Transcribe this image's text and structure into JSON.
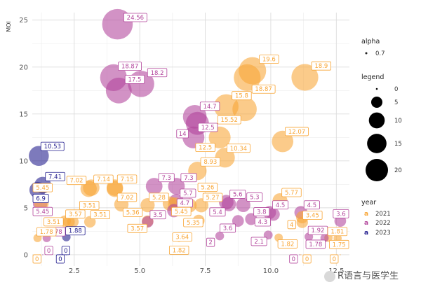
{
  "chart_data": {
    "type": "scatter",
    "variant": "bubble",
    "ylabel": "MOI",
    "xlabel": "",
    "xlim": [
      0.9,
      13.0
    ],
    "ylim": [
      -1.2,
      25.8
    ],
    "xticks": [
      2.5,
      5.0,
      7.5,
      10.0,
      12.5
    ],
    "xtick_labels": [
      "2.5",
      "5.0",
      "7.5",
      "10.0",
      "12.5"
    ],
    "yticks": [
      0,
      5,
      10,
      15,
      20,
      25
    ],
    "ytick_labels": [
      "0",
      "5",
      "10",
      "15",
      "20",
      "25"
    ],
    "colors": {
      "2021": "#f8a535",
      "2022": "#b2449b",
      "2023": "#1f1a8c"
    },
    "legend": {
      "alpha_title": "alpha",
      "alpha_value": "0.7",
      "size_title": "legend",
      "size_values": [
        0,
        5,
        10,
        15,
        20
      ],
      "size_labels": [
        "0",
        "5",
        "10",
        "15",
        "20"
      ],
      "year_title": "year",
      "year_labels": [
        "2021",
        "2022",
        "2023"
      ]
    },
    "points": [
      {
        "year": "2023",
        "x": 1.15,
        "y": 10.53,
        "label": "10.53"
      },
      {
        "year": "2023",
        "x": 1.3,
        "y": 7.41,
        "label": "7.41"
      },
      {
        "year": "2023",
        "x": 1.1,
        "y": 6.9,
        "label": "6.9"
      },
      {
        "year": "2023",
        "x": 2.2,
        "y": 1.88,
        "label": "1.88"
      },
      {
        "year": "2023",
        "x": 1.95,
        "y": 0,
        "label": "0"
      },
      {
        "year": "2023",
        "x": 2.2,
        "y": 0,
        "label": "0"
      },
      {
        "year": "2022",
        "x": 1.2,
        "y": 5.45,
        "label": "5.45"
      },
      {
        "year": "2022",
        "x": 1.45,
        "y": 1.78,
        "label": "1.78"
      },
      {
        "year": "2022",
        "x": 1.3,
        "y": 0,
        "label": "0"
      },
      {
        "year": "2022",
        "x": 4.15,
        "y": 24.56,
        "label": "24.56"
      },
      {
        "year": "2022",
        "x": 4.0,
        "y": 18.87,
        "label": "18.87"
      },
      {
        "year": "2022",
        "x": 5.05,
        "y": 18.2,
        "label": "18.2"
      },
      {
        "year": "2022",
        "x": 4.2,
        "y": 17.5,
        "label": "17.5"
      },
      {
        "year": "2022",
        "x": 7.1,
        "y": 14.7,
        "label": "14.7"
      },
      {
        "year": "2022",
        "x": 7.2,
        "y": 14.0,
        "label": "14"
      },
      {
        "year": "2022",
        "x": 7.05,
        "y": 12.5,
        "label": "12.5"
      },
      {
        "year": "2022",
        "x": 5.55,
        "y": 7.3,
        "label": "7.3"
      },
      {
        "year": "2022",
        "x": 6.4,
        "y": 7.3,
        "label": "7.3"
      },
      {
        "year": "2022",
        "x": 6.4,
        "y": 5.7,
        "label": "5.7"
      },
      {
        "year": "2022",
        "x": 6.3,
        "y": 4.7,
        "label": "4.7"
      },
      {
        "year": "2022",
        "x": 5.3,
        "y": 3.5,
        "label": "3.5"
      },
      {
        "year": "2022",
        "x": 8.3,
        "y": 5.6,
        "label": "5.6"
      },
      {
        "year": "2022",
        "x": 8.95,
        "y": 5.3,
        "label": "5.3"
      },
      {
        "year": "2022",
        "x": 8.4,
        "y": 5.4,
        "label": "5.4"
      },
      {
        "year": "2022",
        "x": 9.25,
        "y": 3.8,
        "label": "3.8"
      },
      {
        "year": "2022",
        "x": 8.75,
        "y": 3.6,
        "label": "3.6"
      },
      {
        "year": "2022",
        "x": 8.05,
        "y": 2.0,
        "label": "2"
      },
      {
        "year": "2022",
        "x": 9.95,
        "y": 4.5,
        "label": "4.5"
      },
      {
        "year": "2022",
        "x": 10.1,
        "y": 4.3,
        "label": "4.3"
      },
      {
        "year": "2022",
        "x": 9.9,
        "y": 2.1,
        "label": "2.1"
      },
      {
        "year": "2022",
        "x": 11.15,
        "y": 4.5,
        "label": "4.5"
      },
      {
        "year": "2022",
        "x": 11.45,
        "y": 1.92,
        "label": "1.92"
      },
      {
        "year": "2022",
        "x": 12.05,
        "y": 1.78,
        "label": "1.78"
      },
      {
        "year": "2022",
        "x": 12.65,
        "y": 3.6,
        "label": "3.6"
      },
      {
        "year": "2022",
        "x": 11.1,
        "y": 0,
        "label": "0"
      },
      {
        "year": "2021",
        "x": 1.25,
        "y": 5.45,
        "label": "5.45"
      },
      {
        "year": "2021",
        "x": 1.1,
        "y": 1.78,
        "label": "1.78"
      },
      {
        "year": "2021",
        "x": 1.2,
        "y": 0,
        "label": "0"
      },
      {
        "year": "2021",
        "x": 2.15,
        "y": 3.57,
        "label": "3.57"
      },
      {
        "year": "2021",
        "x": 2.45,
        "y": 3.51,
        "label": "3.51"
      },
      {
        "year": "2021",
        "x": 2.3,
        "y": 3.51,
        "label": "3.51"
      },
      {
        "year": "2021",
        "x": 3.1,
        "y": 3.51,
        "label": "3.51"
      },
      {
        "year": "2021",
        "x": 3.15,
        "y": 7.14,
        "label": "7.14"
      },
      {
        "year": "2021",
        "x": 3.05,
        "y": 7.02,
        "label": "7.02"
      },
      {
        "year": "2021",
        "x": 4.05,
        "y": 7.15,
        "label": "7.15"
      },
      {
        "year": "2021",
        "x": 4.05,
        "y": 7.02,
        "label": "7.02"
      },
      {
        "year": "2021",
        "x": 4.3,
        "y": 5.36,
        "label": "5.36"
      },
      {
        "year": "2021",
        "x": 5.3,
        "y": 5.28,
        "label": "5.28"
      },
      {
        "year": "2021",
        "x": 5.3,
        "y": 3.57,
        "label": "3.57"
      },
      {
        "year": "2021",
        "x": 6.15,
        "y": 5.45,
        "label": "5.45"
      },
      {
        "year": "2021",
        "x": 6.35,
        "y": 5.35,
        "label": "5.35"
      },
      {
        "year": "2021",
        "x": 6.9,
        "y": 5.26,
        "label": "5.26"
      },
      {
        "year": "2021",
        "x": 7.35,
        "y": 5.27,
        "label": "5.27"
      },
      {
        "year": "2021",
        "x": 7.25,
        "y": 3.64,
        "label": "3.64"
      },
      {
        "year": "2021",
        "x": 7.2,
        "y": 8.93,
        "label": "8.93"
      },
      {
        "year": "2021",
        "x": 6.5,
        "y": 1.82,
        "label": "1.82"
      },
      {
        "year": "2021",
        "x": 8.3,
        "y": 15.8,
        "label": "15.8"
      },
      {
        "year": "2021",
        "x": 9.0,
        "y": 15.52,
        "label": "15.52"
      },
      {
        "year": "2021",
        "x": 8.05,
        "y": 12.5,
        "label": "12.5"
      },
      {
        "year": "2021",
        "x": 8.25,
        "y": 10.34,
        "label": "10.34"
      },
      {
        "year": "2021",
        "x": 9.3,
        "y": 19.6,
        "label": "19.6"
      },
      {
        "year": "2021",
        "x": 9.1,
        "y": 18.87,
        "label": "18.87"
      },
      {
        "year": "2021",
        "x": 11.3,
        "y": 18.9,
        "label": "18.9"
      },
      {
        "year": "2021",
        "x": 10.45,
        "y": 12.07,
        "label": "12.07"
      },
      {
        "year": "2021",
        "x": 10.35,
        "y": 5.77,
        "label": "5.77"
      },
      {
        "year": "2021",
        "x": 11.2,
        "y": 4.0,
        "label": "4"
      },
      {
        "year": "2021",
        "x": 11.2,
        "y": 3.45,
        "label": "3.45"
      },
      {
        "year": "2021",
        "x": 10.3,
        "y": 1.82,
        "label": "1.82"
      },
      {
        "year": "2021",
        "x": 12.2,
        "y": 1.81,
        "label": "1.81"
      },
      {
        "year": "2021",
        "x": 12.55,
        "y": 1.75,
        "label": "1.75"
      },
      {
        "year": "2021",
        "x": 11.15,
        "y": 0,
        "label": "0"
      },
      {
        "year": "2021",
        "x": 12.65,
        "y": 0,
        "label": "0"
      }
    ]
  },
  "watermark": "R语言与医学生"
}
